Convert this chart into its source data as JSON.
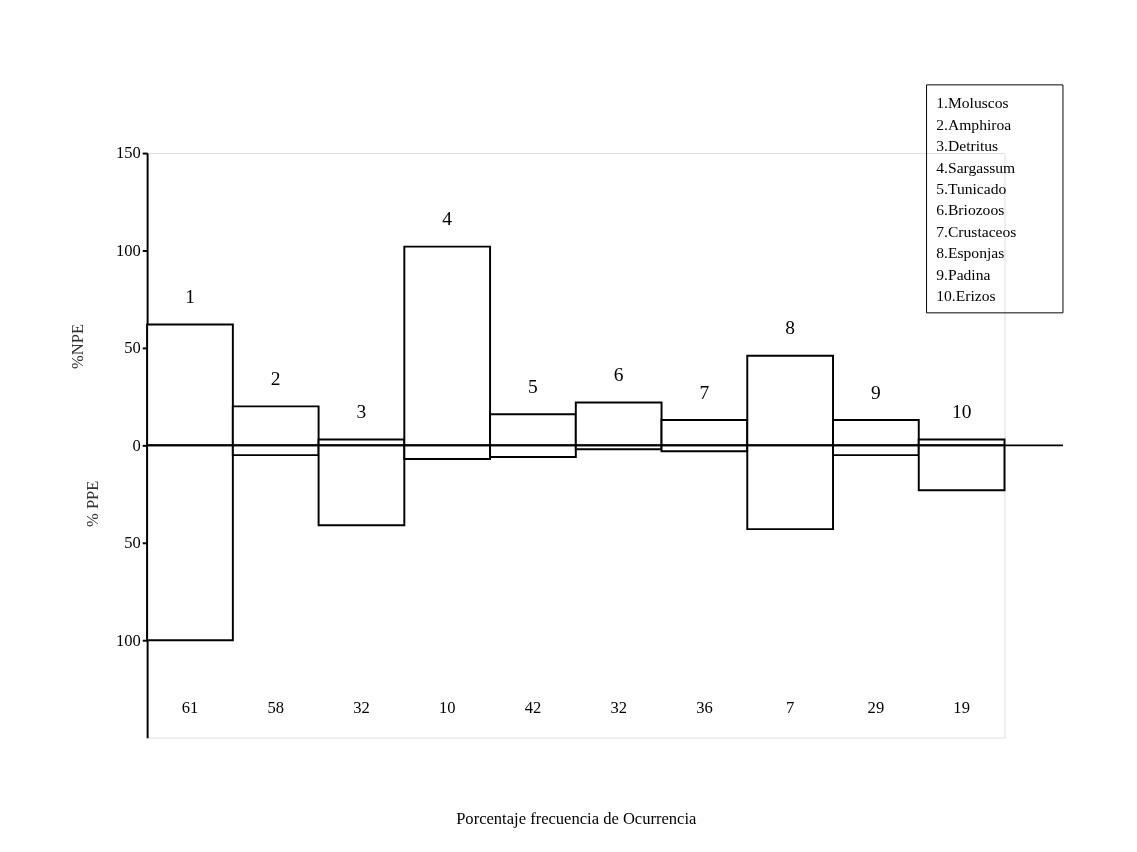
{
  "chart_data": {
    "type": "bar",
    "xlabel": "Porcentaje frecuencia  de Ocurrencia",
    "ylabel": "%NPE",
    "categories": [
      "1",
      "2",
      "3",
      "4",
      "5",
      "6",
      "7",
      "8",
      "9",
      "10"
    ],
    "stacked": true,
    "series": [
      {
        "color": "#000000",
        "values": [
          62,
          20,
          3,
          102,
          16,
          22,
          13,
          46,
          13,
          3
        ]
      },
      {
        "color": "#000000",
        "values": [
          -100,
          -5,
          -41,
          -7,
          -6,
          -2,
          -3,
          -43,
          -5,
          -23
        ]
      }
    ],
    "ylim": [
      -150,
      150
    ],
    "yticks": [
      {
        "value": -100,
        "label": "100"
      },
      {
        "value": -50,
        "label": "50"
      },
      0,
      50,
      100,
      150
    ],
    "tick_labels": "y",
    "grid": false,
    "annotations": [
      "% PPE",
      "1.Moluscos",
      "2.Amphiroa",
      "3.Detritus",
      "4.Sargassum",
      "5.Tunicado",
      "6.Briozoos",
      "7.Crustaceos",
      "8.Esponjas",
      "9.Padina",
      "10.Erizos",
      "61",
      "58",
      "32",
      "10",
      "42",
      "32",
      "36",
      "7",
      "29",
      "19"
    ]
  }
}
